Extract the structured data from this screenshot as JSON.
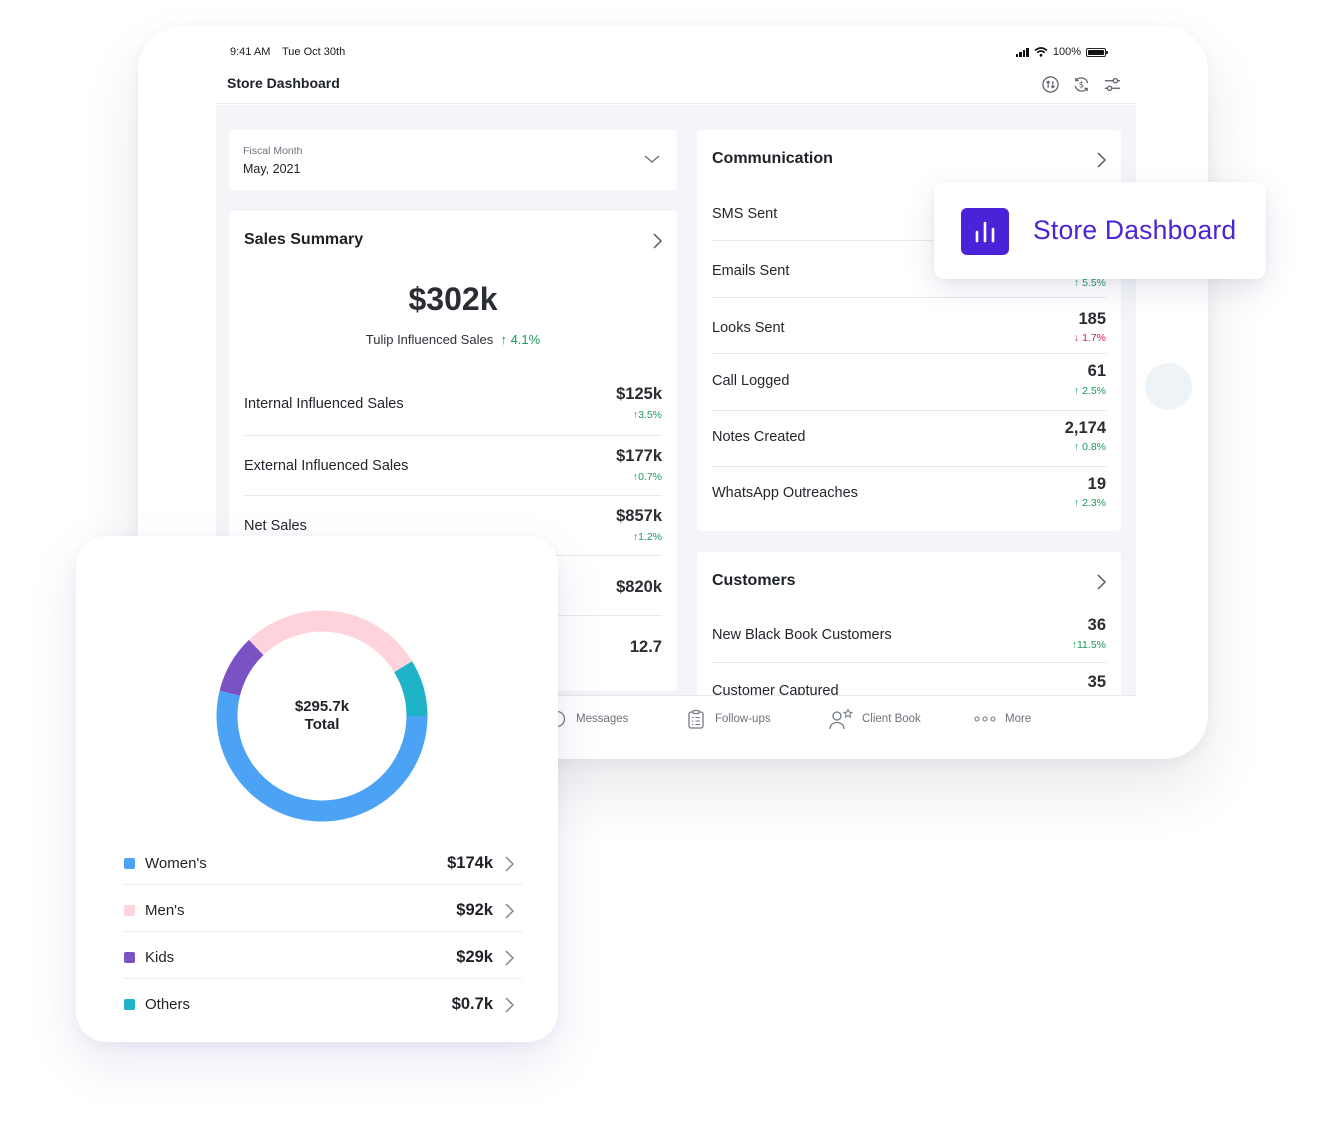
{
  "status_bar": {
    "time": "9:41 AM",
    "date": "Tue Oct 30th",
    "battery": "100%"
  },
  "header": {
    "title": "Store Dashboard",
    "icons": [
      "sort-icon",
      "currency-refresh-icon",
      "filter-sliders-icon"
    ]
  },
  "fiscal": {
    "label": "Fiscal Month",
    "value": "May, 2021"
  },
  "sales_summary": {
    "title": "Sales Summary",
    "headline_value": "$302k",
    "headline_label": "Tulip Influenced Sales",
    "headline_delta": "4.1%",
    "rows": [
      {
        "label": "Internal Influenced Sales",
        "value": "$125k",
        "delta": "3.5%"
      },
      {
        "label": "External Influenced Sales",
        "value": "$177k",
        "delta": "0.7%"
      },
      {
        "label": "Net Sales",
        "value": "$857k",
        "delta": "1.2%"
      },
      {
        "label": "",
        "value": "$820k",
        "delta": ""
      },
      {
        "label": "",
        "value": "12.7",
        "delta": ""
      }
    ]
  },
  "communication": {
    "title": "Communication",
    "rows": [
      {
        "label": "SMS Sent",
        "value": "",
        "delta": "",
        "direction": "up"
      },
      {
        "label": "Emails Sent",
        "value": "",
        "delta": "5.5%",
        "direction": "up"
      },
      {
        "label": "Looks Sent",
        "value": "185",
        "delta": "1.7%",
        "direction": "down"
      },
      {
        "label": "Call Logged",
        "value": "61",
        "delta": "2.5%",
        "direction": "up"
      },
      {
        "label": "Notes Created",
        "value": "2,174",
        "delta": "0.8%",
        "direction": "up"
      },
      {
        "label": "WhatsApp Outreaches",
        "value": "19",
        "delta": "2.3%",
        "direction": "up"
      }
    ]
  },
  "customers": {
    "title": "Customers",
    "rows": [
      {
        "label": "New Black Book Customers",
        "value": "36",
        "delta": "11.5%"
      },
      {
        "label": "Customer Captured",
        "value": "35",
        "delta": ""
      }
    ]
  },
  "tabbar": {
    "items": [
      {
        "label": "Messages",
        "icon": "chat-bubble-icon"
      },
      {
        "label": "Follow-ups",
        "icon": "clipboard-icon"
      },
      {
        "label": "Client Book",
        "icon": "person-star-icon"
      },
      {
        "label": "More",
        "icon": "more-dots-icon"
      }
    ]
  },
  "badge": {
    "label": "Store Dashboard",
    "icon": "bar-chart-icon",
    "color": "#4a23d8"
  },
  "donut_chart": {
    "center_value": "$295.7k",
    "center_label": "Total",
    "segments": [
      {
        "name": "Women's",
        "value": 174,
        "label": "$174k",
        "color": "#4ca3f5"
      },
      {
        "name": "Men's",
        "value": 92,
        "label": "$92k",
        "color": "#ffd3dc"
      },
      {
        "name": "Kids",
        "value": 29,
        "label": "$29k",
        "color": "#7b52c4"
      },
      {
        "name": "Others",
        "value": 0.7,
        "label": "$0.7k",
        "color": "#1fb3c8"
      }
    ]
  },
  "chart_data": {
    "type": "pie",
    "categories": [
      "Women's",
      "Men's",
      "Kids",
      "Others"
    ],
    "values": [
      174,
      92,
      29,
      0.7
    ],
    "title": "",
    "center_text": "$295.7k Total"
  }
}
